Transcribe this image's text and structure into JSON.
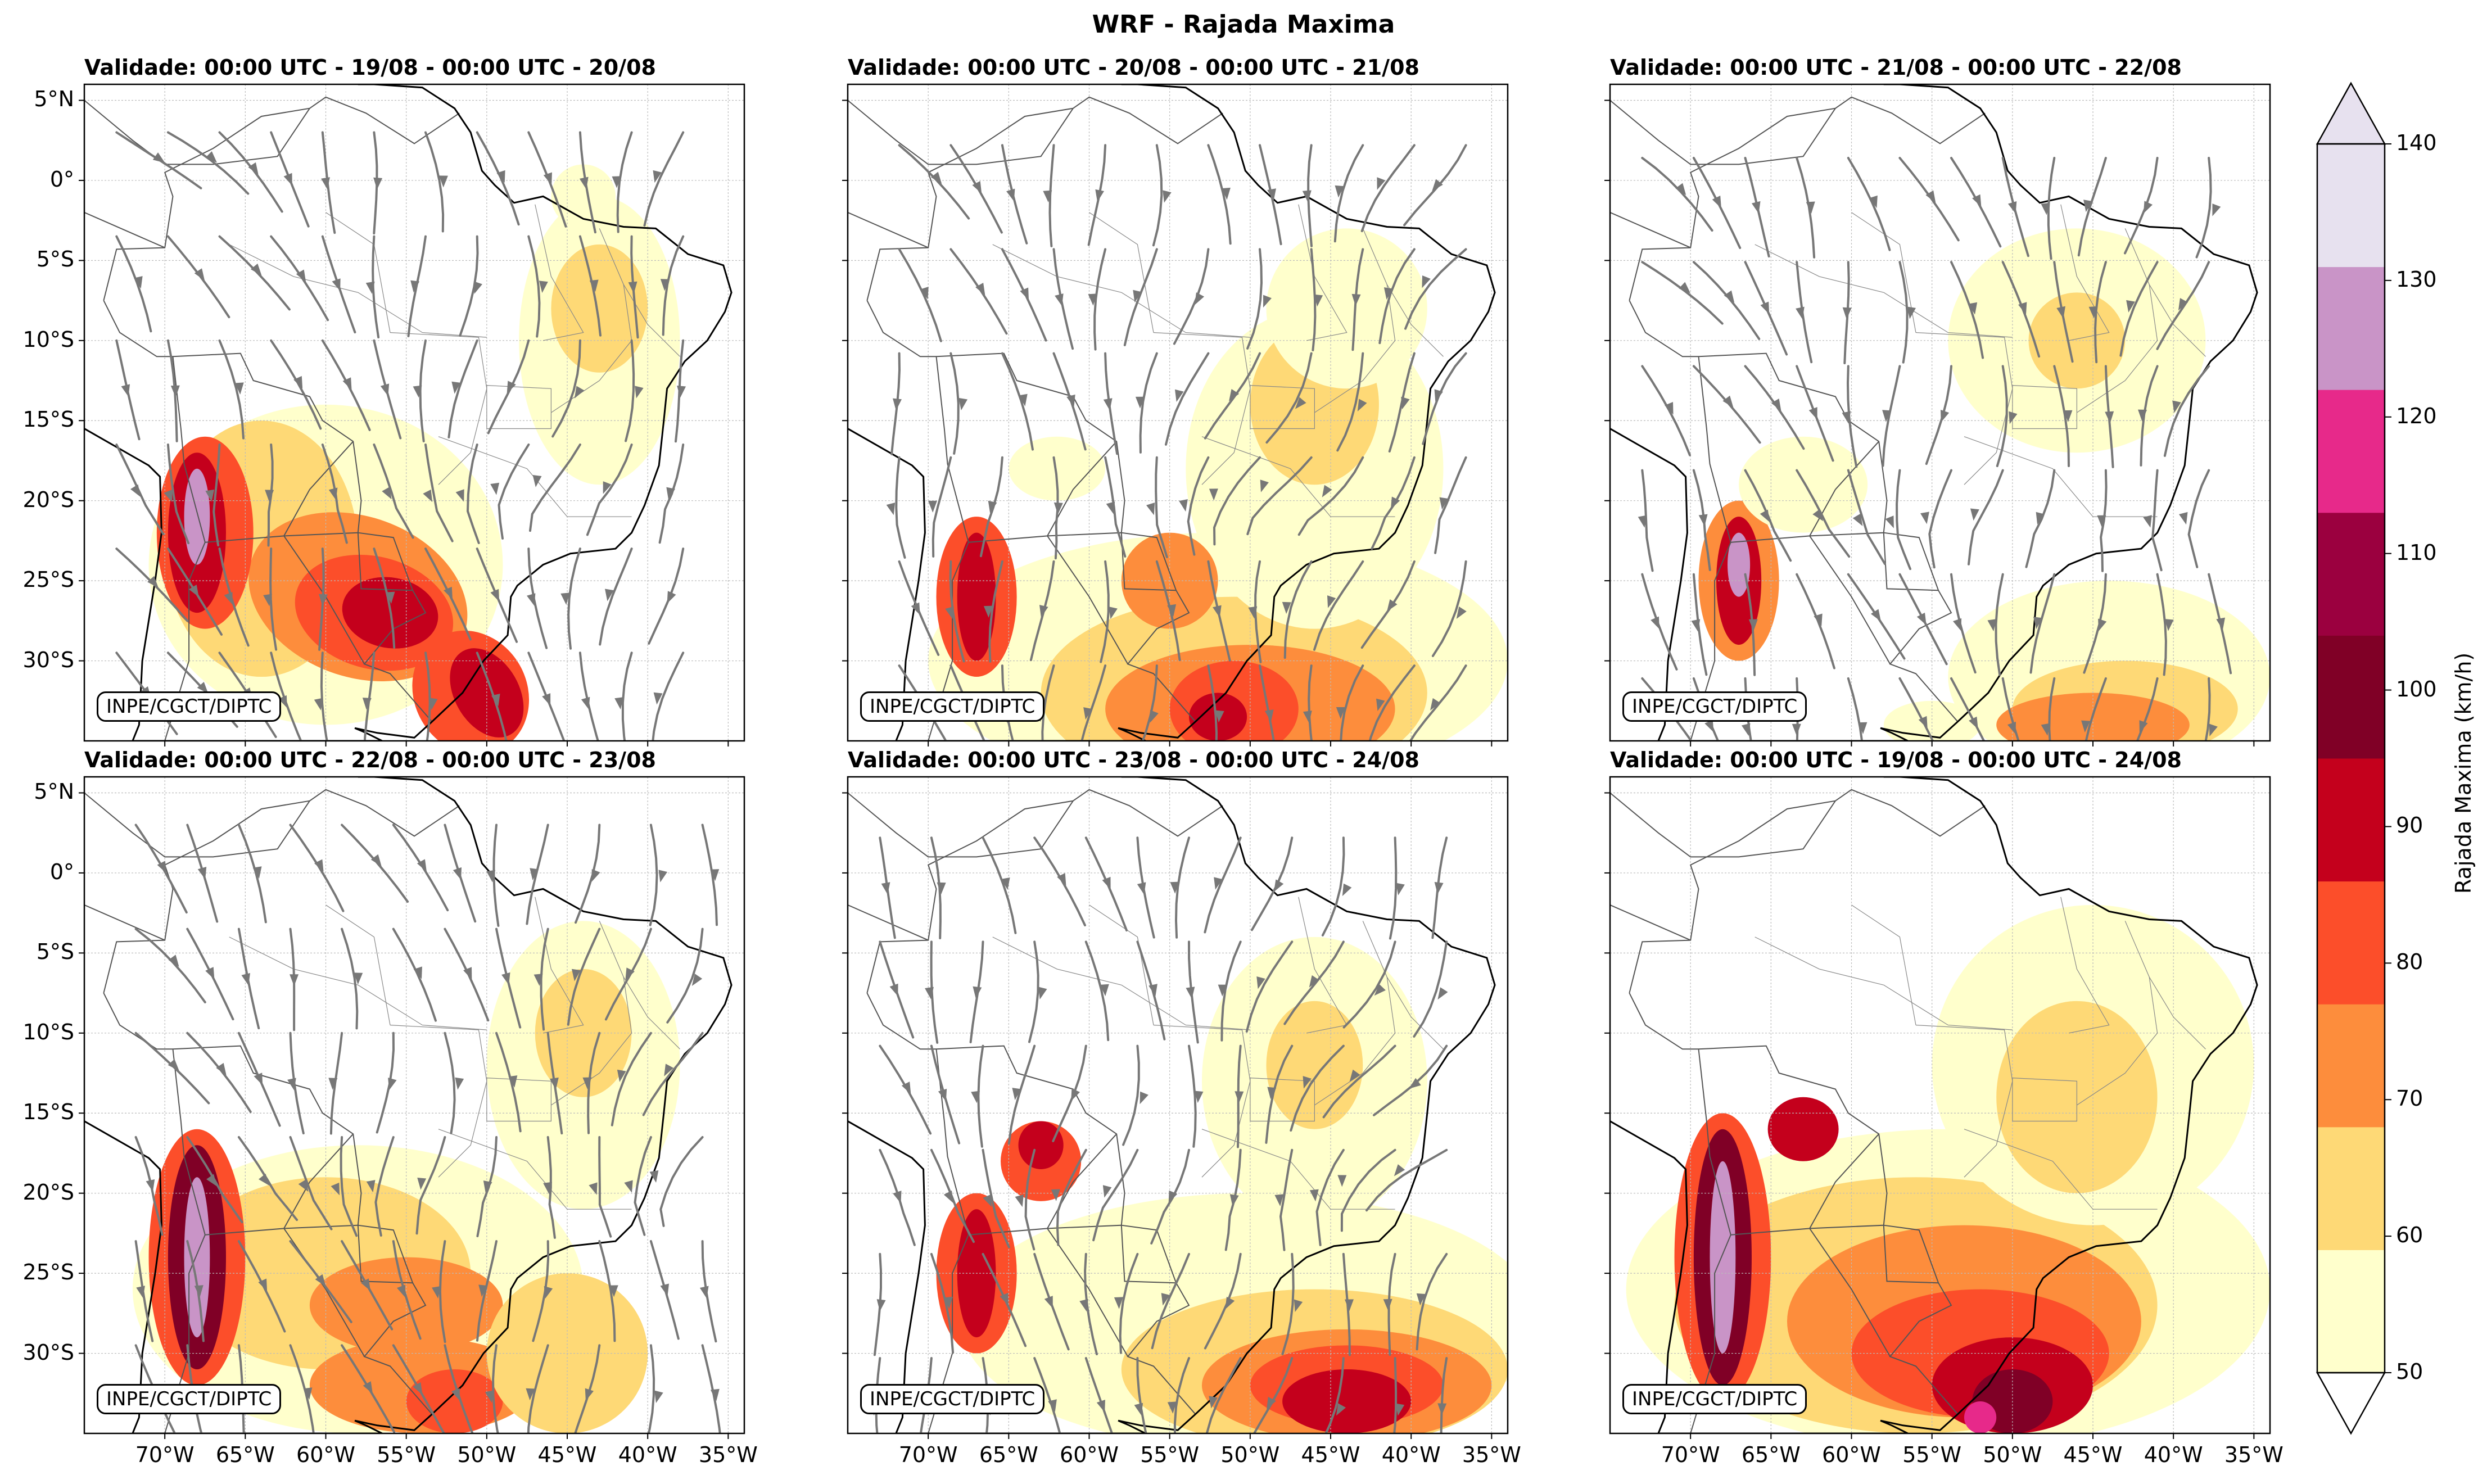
{
  "title": "WRF - Rajada Maxima",
  "credit": "INPE/CGCT/DIPTC",
  "panels": [
    {
      "title": "Validade: 00:00 UTC - 19/08 - 00:00 UTC - 20/08"
    },
    {
      "title": "Validade: 00:00 UTC - 20/08 - 00:00 UTC - 21/08"
    },
    {
      "title": "Validade: 00:00 UTC - 21/08 - 00:00 UTC - 22/08"
    },
    {
      "title": "Validade: 00:00 UTC - 22/08 - 00:00 UTC - 23/08"
    },
    {
      "title": "Validade: 00:00 UTC - 23/08 - 00:00 UTC - 24/08"
    },
    {
      "title": "Validade: 00:00 UTC - 19/08 - 00:00 UTC - 24/08"
    }
  ],
  "lat_labels": [
    "5°N",
    "0°",
    "5°S",
    "10°S",
    "15°S",
    "20°S",
    "25°S",
    "30°S"
  ],
  "lon_labels": [
    "70°W",
    "65°W",
    "60°W",
    "55°W",
    "50°W",
    "45°W",
    "40°W",
    "35°W"
  ],
  "colorbar": {
    "label": "Rajada Maxima (km/h)",
    "ticks": [
      "50",
      "60",
      "70",
      "80",
      "90",
      "100",
      "110",
      "120",
      "130",
      "140"
    ],
    "colors": [
      "#ffffcc",
      "#fed976",
      "#fd8d3c",
      "#fc4e2a",
      "#c4001c",
      "#800026",
      "#9b003f",
      "#e7298a",
      "#c994c7",
      "#e7e1ef"
    ]
  }
}
